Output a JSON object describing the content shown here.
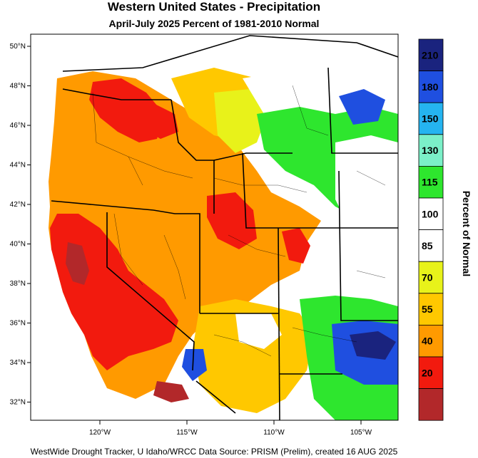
{
  "title": "Western United States - Precipitation",
  "subtitle": "April-July 2025  Percent of 1981-2010 Normal",
  "footer": "WestWide Drought Tracker, U Idaho/WRCC Data Source: PRISM (Prelim), created 16 AUG 2025",
  "colorbar_title": "Percent of Normal",
  "lat_labels": [
    "50°N",
    "48°N",
    "46°N",
    "44°N",
    "42°N",
    "40°N",
    "38°N",
    "36°N",
    "34°N",
    "32°N"
  ],
  "lon_labels": [
    "120°W",
    "115°W",
    "110°W",
    "105°W"
  ],
  "legend": {
    "labels": [
      "210",
      "180",
      "150",
      "130",
      "115",
      "100",
      "85",
      "70",
      "55",
      "40",
      "20"
    ],
    "colors": [
      "#1a237e",
      "#1f4fe0",
      "#25b4f0",
      "#7bf0c8",
      "#2ee62e",
      "#ffffff",
      "#ffffff",
      "#e8f21a",
      "#ffc800",
      "#ff9a00",
      "#f21a0e",
      "#b2282a"
    ]
  },
  "map_colors": {
    "very_dry": "#b2282a",
    "dry": "#f21a0e",
    "orange": "#ff9a00",
    "gold": "#ffc800",
    "yellow": "#e8f21a",
    "normal": "#ffffff",
    "green": "#2ee62e",
    "teal": "#7bf0c8",
    "cyan": "#25b4f0",
    "blue": "#1f4fe0",
    "navy": "#1a237e"
  }
}
